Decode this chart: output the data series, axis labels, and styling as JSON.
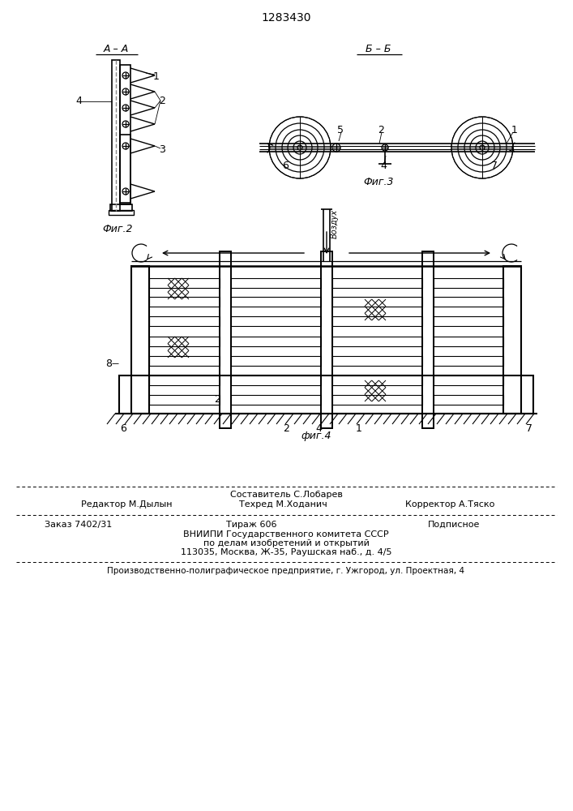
{
  "patent_number": "1283430",
  "bg": "#ffffff",
  "lc": "#000000",
  "fig2_label": "Фиг.2",
  "fig3_label": "Фиг.3",
  "fig4_label": "фиг.4",
  "sec_aa": "А – А",
  "sec_bb": "Б – Б",
  "vozdukh": "Воздух",
  "label8": "8",
  "footer1": "Составитель С.Лобарев",
  "footer2": "Редактор М.Дылын",
  "footer3": "Техред М.Ходанич",
  "footer4": "Корректор А.Тяско",
  "footer5": "Заказ 7402/31",
  "footer6": "Тираж 606",
  "footer7": "Подписное",
  "footer8": "ВНИИПИ Государственного комитета СССР",
  "footer9": "по делам изобретений и открытий",
  "footer10": "113035, Москва, Ж-35, Раушская наб., д. 4/5",
  "footer11": "Производственно-полиграфическое предприятие, г. Ужгород, ул. Проектная, 4"
}
